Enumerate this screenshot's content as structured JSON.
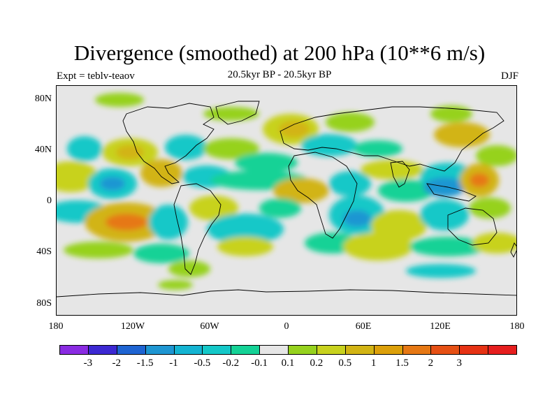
{
  "title": "Divergence (smoothed) at 200 hPa (10**6 m/s)",
  "subtitle_left": "Expt = teblv-teaov",
  "subtitle_center": "20.5kyr BP - 20.5kyr BP",
  "subtitle_right": "DJF",
  "lat_labels": [
    "80N",
    "40N",
    "0",
    "40S",
    "80S"
  ],
  "lon_labels": [
    "180",
    "120W",
    "60W",
    "0",
    "60E",
    "120E",
    "180"
  ],
  "legend": {
    "colors": [
      "#8a2be2",
      "#3c28d2",
      "#1e64d2",
      "#1e96d2",
      "#14b4d2",
      "#14c8c8",
      "#14d296",
      "#e6e6e6",
      "#96d21e",
      "#c8d21e",
      "#d2b414",
      "#dca00a",
      "#e67814",
      "#e65014",
      "#e63214",
      "#e61e1e"
    ],
    "labels": [
      "-3",
      "-2",
      "-1.5",
      "-1",
      "-0.5",
      "-0.2",
      "-0.1",
      "0.1",
      "0.2",
      "0.5",
      "1",
      "1.5",
      "2",
      "3"
    ]
  },
  "colors": {
    "ocean_background": "#e6e6e6",
    "coastline": "#000000"
  }
}
